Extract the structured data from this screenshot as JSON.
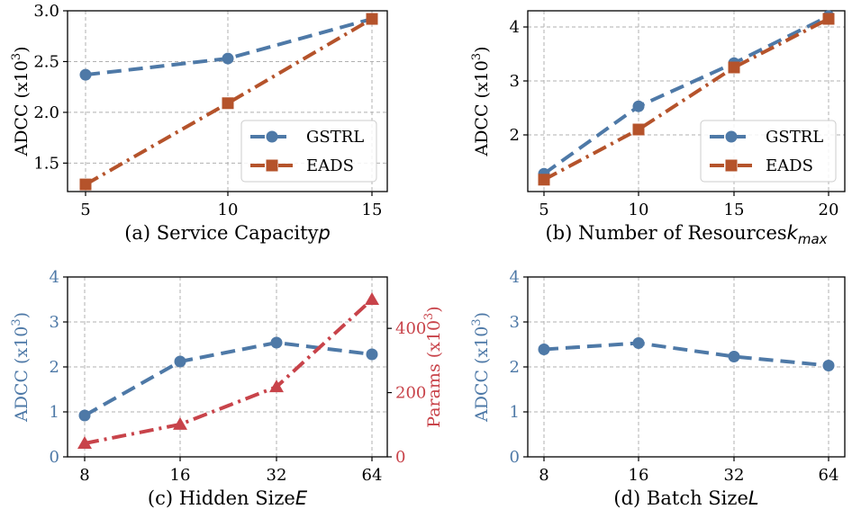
{
  "colors": {
    "gstrl": "#4e79a7",
    "eads": "#b5532b",
    "params": "#c8434a",
    "grid": "#b0b0b0",
    "axis": "#000000"
  },
  "chart_data": [
    {
      "type": "line",
      "title": "(a) Service Capacity",
      "title_var": "p",
      "xlabel": "(a) Service Capacity",
      "ylabel": "ADCC (x10",
      "ylabel_exp": "3",
      "x": [
        5,
        10,
        15
      ],
      "xticks": [
        "5",
        "10",
        "15"
      ],
      "yticks": [
        "1.5",
        "2.0",
        "2.5",
        "3.0"
      ],
      "ylim": [
        1.22,
        3.0
      ],
      "series": [
        {
          "name": "GSTRL",
          "values": [
            2.37,
            2.53,
            2.92
          ]
        },
        {
          "name": "EADS",
          "values": [
            1.29,
            2.09,
            2.92
          ]
        }
      ],
      "legend": [
        "GSTRL",
        "EADS"
      ],
      "legend_position": "bottom-right"
    },
    {
      "type": "line",
      "title": "(b) Number of Resources",
      "title_var": "k",
      "title_sub": "max",
      "xlabel": "(b) Number of Resources",
      "ylabel": "ADCC (x10",
      "ylabel_exp": "3",
      "x": [
        5,
        10,
        15,
        20
      ],
      "xticks": [
        "5",
        "10",
        "15",
        "20"
      ],
      "yticks": [
        "2",
        "3",
        "4"
      ],
      "ylim": [
        0.95,
        4.3
      ],
      "series": [
        {
          "name": "GSTRL",
          "values": [
            1.28,
            2.53,
            3.33,
            4.2
          ]
        },
        {
          "name": "EADS",
          "values": [
            1.17,
            2.1,
            3.25,
            4.15
          ]
        }
      ],
      "legend": [
        "GSTRL",
        "EADS"
      ],
      "legend_position": "bottom-right"
    },
    {
      "type": "line",
      "title": "(c) Hidden Size",
      "title_var": "E",
      "xlabel": "(c) Hidden Size",
      "ylabel": "ADCC (x10",
      "ylabel_exp": "3",
      "y2label": "Params (x10",
      "y2label_exp": "3",
      "x": [
        8,
        16,
        32,
        64
      ],
      "xticks": [
        "8",
        "16",
        "32",
        "64"
      ],
      "yticks": [
        "0",
        "1",
        "2",
        "3",
        "4"
      ],
      "ylim": [
        0,
        4
      ],
      "y2ticks": [
        "0",
        "200",
        "400"
      ],
      "y2lim": [
        0,
        560
      ],
      "series": [
        {
          "name": "ADCC",
          "axis": "left",
          "values": [
            0.92,
            2.12,
            2.54,
            2.28
          ]
        },
        {
          "name": "Params",
          "axis": "right",
          "values": [
            42,
            101,
            218,
            490
          ]
        }
      ]
    },
    {
      "type": "line",
      "title": "(d) Batch Size",
      "title_var": "L",
      "xlabel": "(d) Batch Size",
      "ylabel": "ADCC (x10",
      "ylabel_exp": "3",
      "x": [
        8,
        16,
        32,
        64
      ],
      "xticks": [
        "8",
        "16",
        "32",
        "64"
      ],
      "yticks": [
        "0",
        "1",
        "2",
        "3",
        "4"
      ],
      "ylim": [
        0,
        4
      ],
      "series": [
        {
          "name": "ADCC",
          "values": [
            2.39,
            2.53,
            2.23,
            2.03
          ]
        }
      ]
    }
  ]
}
